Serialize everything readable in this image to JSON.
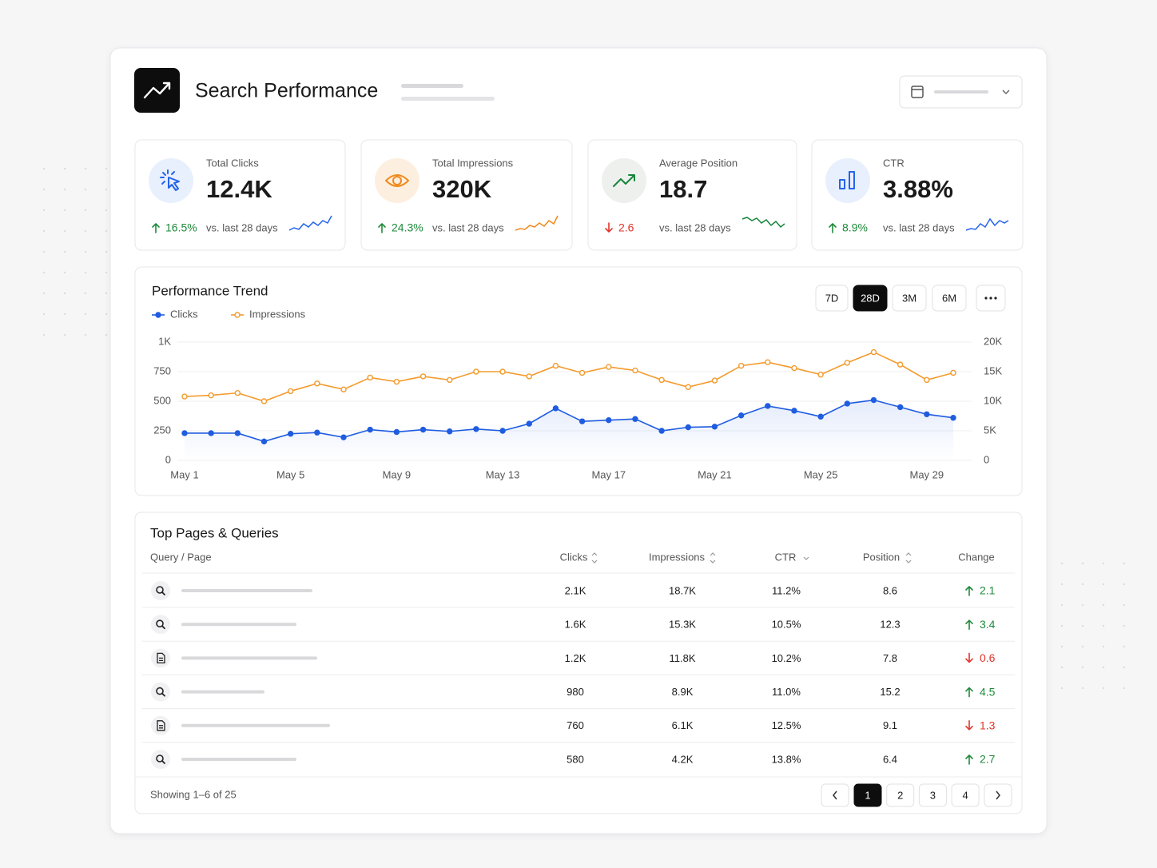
{
  "header": {
    "title": "Search Performance"
  },
  "kpis": [
    {
      "label": "Total Clicks",
      "value": "12.4K",
      "change": "16.5%",
      "direction": "up",
      "compare": "vs. last 28 days"
    },
    {
      "label": "Total Impressions",
      "value": "320K",
      "change": "24.3%",
      "direction": "up",
      "compare": "vs. last 28 days"
    },
    {
      "label": "Average Position",
      "value": "18.7",
      "change": "2.6",
      "direction": "down",
      "compare": "vs. last 28 days"
    },
    {
      "label": "CTR",
      "value": "3.88%",
      "change": "8.9%",
      "direction": "up",
      "compare": "vs. last 28 days"
    }
  ],
  "range_options": [
    "7D",
    "28D",
    "3M",
    "6M"
  ],
  "selected_range": "28D",
  "chart_data": {
    "type": "line",
    "title": "Performance Trend",
    "categories": [
      "May 1",
      null,
      null,
      null,
      "May 5",
      null,
      null,
      null,
      "May 9",
      null,
      null,
      null,
      "May 13",
      null,
      null,
      null,
      "May 17",
      null,
      null,
      null,
      "May 21",
      null,
      null,
      null,
      "May 25",
      null,
      null,
      null,
      "May 29",
      null
    ],
    "series": [
      {
        "name": "Clicks",
        "color": "#1f5ce0",
        "values": [
          230,
          230,
          230,
          160,
          225,
          235,
          195,
          260,
          240,
          260,
          245,
          265,
          250,
          310,
          440,
          330,
          340,
          350,
          250,
          280,
          285,
          380,
          460,
          420,
          370,
          480,
          510,
          450,
          390,
          360
        ]
      },
      {
        "name": "Impressions",
        "color": "#f39a2b",
        "axis": "y2",
        "values": [
          10800,
          11000,
          11400,
          10000,
          11700,
          13000,
          12000,
          14000,
          13300,
          14200,
          13600,
          15000,
          15000,
          14200,
          16000,
          14800,
          15800,
          15200,
          13600,
          12400,
          13500,
          16000,
          16600,
          15600,
          14500,
          16500,
          18300,
          16200,
          13600,
          14800
        ]
      }
    ],
    "ylim": [
      0,
      1000
    ],
    "yticks": [
      0,
      250,
      500,
      750,
      {
        "value": 1000,
        "label": "1K"
      }
    ],
    "y2lim": [
      0,
      20000
    ],
    "y2ticks": [
      0,
      {
        "value": 5000,
        "label": "5K"
      },
      {
        "value": 10000,
        "label": "10K"
      },
      {
        "value": 15000,
        "label": "15K"
      },
      {
        "value": 20000,
        "label": "20K"
      }
    ],
    "grid": true,
    "legend": "top-left"
  },
  "table": {
    "title": "Top Pages & Queries",
    "columns": [
      "Query / Page",
      "Clicks",
      "Impressions",
      "CTR",
      "Position",
      "Change"
    ],
    "rows": [
      {
        "clicks": "2.1K",
        "impressions": "18.7K",
        "ctr": "11.2%",
        "position": "8.6",
        "change": "2.1",
        "direction": "up"
      },
      {
        "clicks": "1.6K",
        "impressions": "15.3K",
        "ctr": "10.5%",
        "position": "12.3",
        "change": "3.4",
        "direction": "up"
      },
      {
        "clicks": "1.2K",
        "impressions": "11.8K",
        "ctr": "10.2%",
        "position": "7.8",
        "change": "0.6",
        "direction": "down"
      },
      {
        "clicks": "980",
        "impressions": "8.9K",
        "ctr": "11.0%",
        "position": "15.2",
        "change": "4.5",
        "direction": "up"
      },
      {
        "clicks": "760",
        "impressions": "6.1K",
        "ctr": "12.5%",
        "position": "9.1",
        "change": "1.3",
        "direction": "down"
      },
      {
        "clicks": "580",
        "impressions": "4.2K",
        "ctr": "13.8%",
        "position": "6.4",
        "change": "2.7",
        "direction": "up"
      }
    ]
  },
  "pagination": {
    "summary": "Showing 1–6 of 25",
    "pages": [
      1,
      2,
      3,
      4
    ],
    "current": 1
  }
}
